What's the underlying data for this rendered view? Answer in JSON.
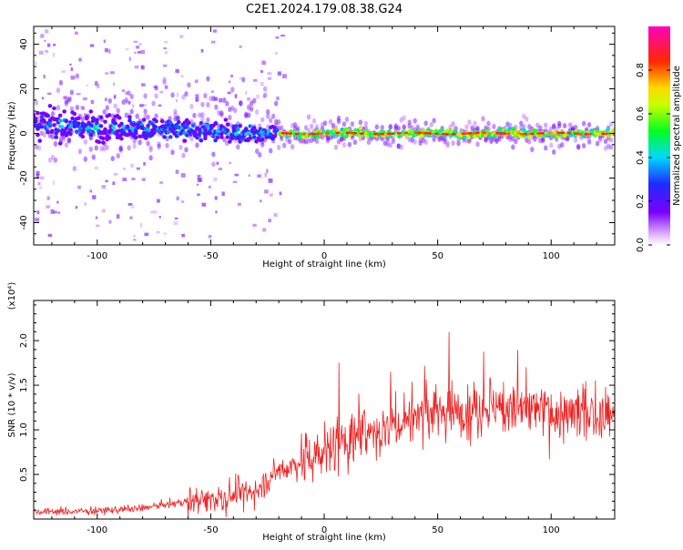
{
  "title": "C2E1.2024.179.08.38.G24",
  "chart_data": [
    {
      "type": "heatmap",
      "xlabel": "Height of straight line (km)",
      "ylabel": "Frequency (Hz)",
      "xlim": [
        -128,
        128
      ],
      "ylim": [
        -50,
        48
      ],
      "xticks": [
        -100,
        -50,
        0,
        50,
        100
      ],
      "yticks": [
        -40,
        -20,
        0,
        20,
        40
      ],
      "colorbar": {
        "label": "Normalized spectral amplitude",
        "range": [
          0.0,
          1.0
        ],
        "ticks": [
          0.0,
          0.2,
          0.4,
          0.6,
          0.8
        ],
        "colormap": "rainbow (white-purple-blue-cyan-green-yellow-red-magenta)"
      },
      "description_points": [
        {
          "x_range": [
            -128,
            -20
          ],
          "freq_center": 2,
          "freq_spread": 10,
          "amplitude": 0.3
        },
        {
          "x_range": [
            -20,
            128
          ],
          "freq_center": 0,
          "freq_spread": 2,
          "amplitude": 0.7
        }
      ]
    },
    {
      "type": "line",
      "xlabel": "Height of straight line (km)",
      "ylabel": "SNR (10 * v/v)",
      "yscale_label": "(x10⁴)",
      "xlim": [
        -128,
        128
      ],
      "ylim": [
        0.0,
        2.45
      ],
      "xticks": [
        -100,
        -50,
        0,
        50,
        100
      ],
      "yticks": [
        0.5,
        1.0,
        1.5,
        2.0
      ],
      "series": [
        {
          "color": "#ee2222",
          "trend_x": [
            -128,
            -100,
            -80,
            -60,
            -40,
            -30,
            -20,
            -10,
            0,
            10,
            20,
            30,
            40,
            50,
            60,
            70,
            80,
            90,
            100,
            110,
            120,
            128
          ],
          "trend_y": [
            0.08,
            0.09,
            0.12,
            0.2,
            0.27,
            0.33,
            0.55,
            0.65,
            0.75,
            0.88,
            0.95,
            1.05,
            1.15,
            1.2,
            1.22,
            1.25,
            1.25,
            1.22,
            1.2,
            1.18,
            1.15,
            1.15
          ]
        }
      ]
    }
  ]
}
